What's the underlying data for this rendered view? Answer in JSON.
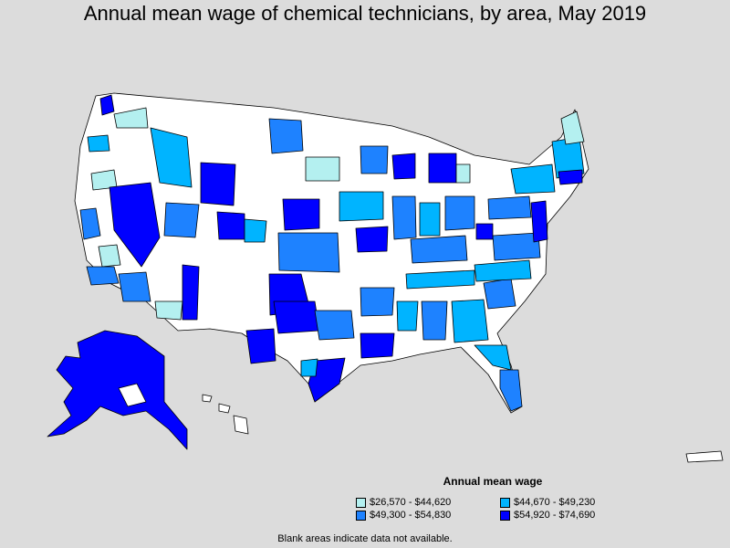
{
  "title": "Annual mean wage of chemical technicians, by area, May 2019",
  "legend": {
    "title": "Annual mean wage",
    "items": [
      {
        "label": "$26,570 - $44,620",
        "color": "#b4f0f0"
      },
      {
        "label": "$44,670 - $49,230",
        "color": "#00b4ff"
      },
      {
        "label": "$49,300 - $54,830",
        "color": "#1e82ff"
      },
      {
        "label": "$54,920 - $74,690",
        "color": "#0000ff"
      }
    ]
  },
  "footnote": "Blank areas indicate data not available.",
  "colors": {
    "background": "#dcdcdc",
    "no_data": "#ffffff",
    "border": "#000000"
  }
}
